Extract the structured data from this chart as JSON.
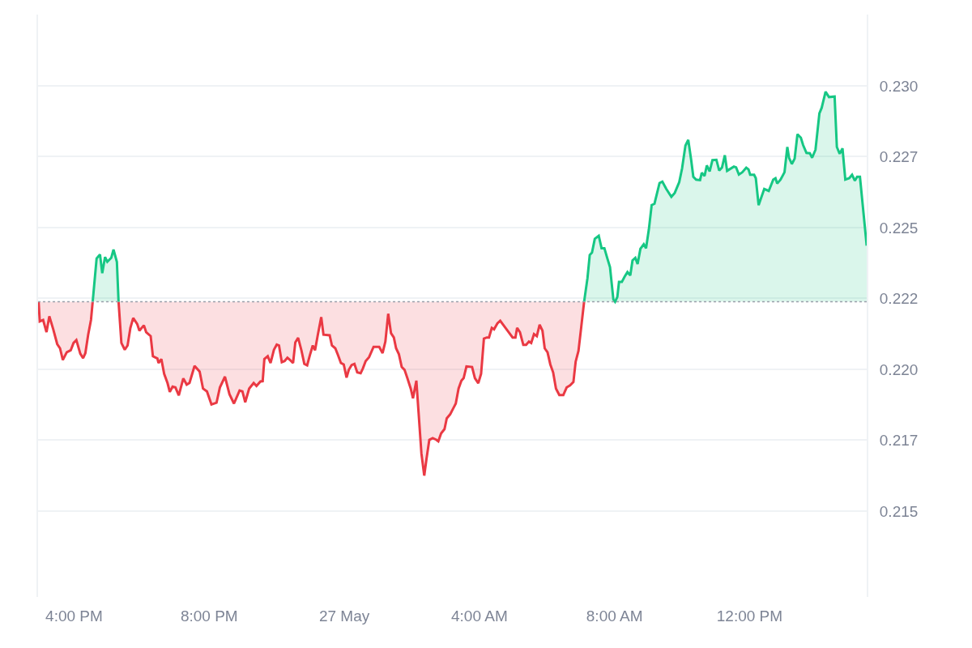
{
  "chart_data": {
    "type": "area",
    "xlim": [
      "--05-26T14:56",
      "--05-27T15:28"
    ],
    "ylim": [
      0.21197,
      0.23251
    ],
    "xticks": [
      {
        "value": "--05-26T16:00",
        "label": "4:00 PM"
      },
      {
        "value": "--05-26T20:00",
        "label": "8:00 PM"
      },
      {
        "value": "--05-27T00:00",
        "label": "27 May"
      },
      {
        "value": "--05-27T04:00",
        "label": "4:00 AM"
      },
      {
        "value": "--05-27T08:00",
        "label": "8:00 AM"
      },
      {
        "value": "--05-27T12:00",
        "label": "12:00 PM"
      }
    ],
    "yticks": [
      {
        "value": 0.215,
        "label": "0.215"
      },
      {
        "value": 0.2175,
        "label": "0.217"
      },
      {
        "value": 0.22,
        "label": "0.220"
      },
      {
        "value": 0.2225,
        "label": "0.222"
      },
      {
        "value": 0.225,
        "label": "0.225"
      },
      {
        "value": 0.2275,
        "label": "0.227"
      },
      {
        "value": 0.23,
        "label": "0.230"
      }
    ],
    "grid": "y",
    "marker": "none",
    "line_style": "solid",
    "ref_lines": [
      {
        "axis": "y",
        "value": 0.22238,
        "label": null,
        "color": "#9aa0ab",
        "line_style": "dotted"
      }
    ],
    "series": [
      {
        "color": "#ea3943",
        "x": [
          "--05-26T14:57",
          "--05-26T14:59",
          "--05-26T15:05",
          "--05-26T15:11",
          "--05-26T15:16",
          "--05-26T15:23",
          "--05-26T15:30",
          "--05-26T15:35",
          "--05-26T15:40",
          "--05-26T15:47",
          "--05-26T15:54",
          "--05-26T15:59",
          "--05-26T16:04",
          "--05-26T16:11",
          "--05-26T16:16",
          "--05-26T16:20",
          "--05-26T16:25",
          "--05-26T16:30",
          "--05-26T16:33",
          "--05-26T16:54",
          "--05-26T17:19",
          "--05-26T17:24",
          "--05-26T17:30",
          "--05-26T17:35",
          "--05-26T17:40",
          "--05-26T17:45",
          "--05-26T17:52",
          "--05-26T17:56",
          "--05-26T18:04",
          "--05-26T18:08",
          "--05-26T18:16",
          "--05-26T18:20",
          "--05-26T18:28",
          "--05-26T18:30",
          "--05-26T18:35",
          "--05-26T18:40",
          "--05-26T18:46",
          "--05-26T18:50",
          "--05-26T18:55",
          "--05-26T19:00",
          "--05-26T19:06",
          "--05-26T19:14",
          "--05-26T19:20",
          "--05-26T19:25",
          "--05-26T19:34",
          "--05-26T19:43",
          "--05-26T19:49",
          "--05-26T19:56",
          "--05-26T20:04",
          "--05-26T20:13",
          "--05-26T20:19",
          "--05-26T20:28",
          "--05-26T20:36",
          "--05-26T20:44",
          "--05-26T20:54",
          "--05-26T20:59",
          "--05-26T21:04",
          "--05-26T21:11",
          "--05-26T21:19",
          "--05-26T21:24",
          "--05-26T21:31",
          "--05-26T21:35",
          "--05-26T21:38",
          "--05-26T21:44",
          "--05-26T21:49",
          "--05-26T21:55",
          "--05-26T22:00",
          "--05-26T22:04",
          "--05-26T22:09",
          "--05-26T22:14",
          "--05-26T22:19",
          "--05-26T22:23",
          "--05-26T22:29",
          "--05-26T22:33",
          "--05-26T22:38",
          "--05-26T22:44",
          "--05-26T22:49",
          "--05-26T22:54",
          "--05-26T22:59",
          "--05-26T23:04",
          "--05-26T23:08",
          "--05-26T23:13",
          "--05-26T23:19",
          "--05-26T23:23",
          "--05-26T23:34",
          "--05-26T23:38",
          "--05-26T23:44",
          "--05-26T23:49",
          "--05-26T23:54",
          "--05-26T23:59",
          "--05-27T00:04",
          "--05-27T00:08",
          "--05-27T00:13",
          "--05-27T00:18",
          "--05-27T00:23",
          "--05-27T00:29",
          "--05-27T00:33",
          "--05-27T00:38",
          "--05-27T00:44",
          "--05-27T00:52",
          "--05-27T01:02",
          "--05-27T01:08",
          "--05-27T01:13",
          "--05-27T01:18",
          "--05-27T01:23",
          "--05-27T01:28",
          "--05-27T01:32",
          "--05-27T01:37",
          "--05-27T01:42",
          "--05-27T01:47",
          "--05-27T01:52",
          "--05-27T01:58",
          "--05-27T02:02",
          "--05-27T02:08",
          "--05-27T02:12",
          "--05-27T02:17",
          "--05-27T02:22",
          "--05-27T02:26",
          "--05-27T02:31",
          "--05-27T02:37",
          "--05-27T02:43",
          "--05-27T02:47",
          "--05-27T02:52",
          "--05-27T02:58",
          "--05-27T03:02",
          "--05-27T03:08",
          "--05-27T03:13",
          "--05-27T03:18",
          "--05-27T03:23",
          "--05-27T03:28",
          "--05-27T03:32",
          "--05-27T03:37",
          "--05-27T03:47",
          "--05-27T03:52",
          "--05-27T03:58",
          "--05-27T04:03",
          "--05-27T04:08",
          "--05-27T04:13",
          "--05-27T04:17",
          "--05-27T04:22",
          "--05-27T04:26",
          "--05-27T04:32",
          "--05-27T04:37",
          "--05-27T04:44",
          "--05-27T04:52",
          "--05-27T04:59",
          "--05-27T05:04",
          "--05-27T05:07",
          "--05-27T05:12",
          "--05-27T05:18",
          "--05-27T05:23",
          "--05-27T05:28",
          "--05-27T05:32",
          "--05-27T05:37",
          "--05-27T05:42",
          "--05-27T05:47",
          "--05-27T05:52",
          "--05-27T05:56",
          "--05-27T06:01",
          "--05-27T06:06",
          "--05-27T06:11",
          "--05-27T06:16",
          "--05-27T06:22",
          "--05-27T06:29",
          "--05-27T06:35",
          "--05-27T06:41",
          "--05-27T06:47",
          "--05-27T06:51",
          "--05-27T06:56",
          "--05-27T07:01",
          "--05-27T07:06"
        ],
        "values": [
          0.22238,
          0.22169,
          0.22174,
          0.22131,
          0.22187,
          0.22141,
          0.22089,
          0.22074,
          0.22033,
          0.2206,
          0.22067,
          0.22093,
          0.22103,
          0.22055,
          0.22039,
          0.22057,
          0.22122,
          0.22174,
          0.22238,
          null,
          0.22238,
          0.22093,
          0.22069,
          0.22084,
          0.22146,
          0.22181,
          0.2216,
          0.22136,
          0.22155,
          0.22131,
          0.22117,
          0.22046,
          0.22038,
          0.22022,
          0.22036,
          0.21984,
          0.21951,
          0.2192,
          0.21939,
          0.21936,
          0.21908,
          0.21968,
          0.21946,
          0.21952,
          0.22012,
          0.21992,
          0.21932,
          0.21922,
          0.21876,
          0.21882,
          0.21936,
          0.21974,
          0.21912,
          0.21879,
          0.21925,
          0.21922,
          0.21884,
          0.21932,
          0.21952,
          0.21941,
          0.21957,
          0.21958,
          0.22036,
          0.22046,
          0.22022,
          0.22069,
          0.22087,
          0.22084,
          0.22025,
          0.22029,
          0.22041,
          0.22034,
          0.22022,
          0.22095,
          0.22111,
          0.22065,
          0.22019,
          0.22014,
          0.22051,
          0.22084,
          0.22067,
          0.22122,
          0.22184,
          0.22122,
          0.2212,
          0.22084,
          0.22074,
          0.22049,
          0.22022,
          0.22017,
          0.21971,
          0.21998,
          0.22015,
          0.22019,
          0.21989,
          0.21986,
          0.22003,
          0.22029,
          0.22043,
          0.22079,
          0.22079,
          0.22057,
          0.22098,
          0.22196,
          0.22127,
          0.22112,
          0.22074,
          0.22053,
          0.22008,
          0.21998,
          0.21969,
          0.21932,
          0.21898,
          0.2196,
          0.21846,
          0.21703,
          0.21625,
          0.21684,
          0.21751,
          0.21757,
          0.21752,
          0.21746,
          0.21774,
          0.21789,
          0.21827,
          0.21841,
          0.2186,
          0.21879,
          0.21932,
          0.2196,
          0.21969,
          0.2201,
          0.22008,
          0.21969,
          0.21951,
          0.21984,
          0.22108,
          0.22112,
          0.22112,
          0.22146,
          0.22141,
          0.22162,
          0.22171,
          0.22152,
          0.22131,
          0.22112,
          0.22112,
          0.22146,
          0.22131,
          0.22086,
          0.22086,
          0.22098,
          0.22093,
          0.22124,
          0.22117,
          0.22157,
          0.22136,
          0.22074,
          0.2206,
          0.22017,
          0.21989,
          0.21932,
          0.21909,
          0.21909,
          0.21936,
          0.21943,
          0.21955,
          0.22027,
          0.22065,
          0.22151,
          0.22238
        ]
      },
      {
        "color": "#16c784",
        "x": [
          "--05-26T16:33",
          "--05-26T16:40",
          "--05-26T16:46",
          "--05-26T16:50",
          "--05-26T16:55",
          "--05-26T16:59",
          "--05-26T17:06",
          "--05-26T17:10",
          "--05-26T17:16",
          "--05-26T17:19",
          "--05-27T00:00",
          "--05-27T07:06",
          "--05-27T07:12",
          "--05-27T07:16",
          "--05-27T07:20",
          "--05-27T07:25",
          "--05-27T07:32",
          "--05-27T07:37",
          "--05-27T07:42",
          "--05-27T07:47",
          "--05-27T07:52",
          "--05-27T07:55",
          "--05-27T07:58",
          "--05-27T08:01",
          "--05-27T08:05",
          "--05-27T08:08",
          "--05-27T08:13",
          "--05-27T08:18",
          "--05-27T08:23",
          "--05-27T08:28",
          "--05-27T08:32",
          "--05-27T08:37",
          "--05-27T08:41",
          "--05-27T08:46",
          "--05-27T08:52",
          "--05-27T08:56",
          "--05-27T09:01",
          "--05-27T09:06",
          "--05-27T09:11",
          "--05-27T09:20",
          "--05-27T09:25",
          "--05-27T09:32",
          "--05-27T09:41",
          "--05-27T09:47",
          "--05-27T09:55",
          "--05-27T10:00",
          "--05-27T10:06",
          "--05-27T10:11",
          "--05-27T10:16",
          "--05-27T10:20",
          "--05-27T10:25",
          "--05-27T10:32",
          "--05-27T10:35",
          "--05-27T10:40",
          "--05-27T10:44",
          "--05-27T10:49",
          "--05-27T10:54",
          "--05-27T11:01",
          "--05-27T11:06",
          "--05-27T11:11",
          "--05-27T11:16",
          "--05-27T11:20",
          "--05-27T11:32",
          "--05-27T11:36",
          "--05-27T11:41",
          "--05-27T11:47",
          "--05-27T11:54",
          "--05-27T11:58",
          "--05-27T12:01",
          "--05-27T12:08",
          "--05-27T12:11",
          "--05-27T12:16",
          "--05-27T12:26",
          "--05-27T12:34",
          "--05-27T12:42",
          "--05-27T12:46",
          "--05-27T12:49",
          "--05-27T12:55",
          "--05-27T13:02",
          "--05-27T13:07",
          "--05-27T13:10",
          "--05-27T13:15",
          "--05-27T13:20",
          "--05-27T13:25",
          "--05-27T13:31",
          "--05-27T13:35",
          "--05-27T13:41",
          "--05-27T13:47",
          "--05-27T13:51",
          "--05-27T13:57",
          "--05-27T14:04",
          "--05-27T14:08",
          "--05-27T14:15",
          "--05-27T14:21",
          "--05-27T14:31",
          "--05-27T14:35",
          "--05-27T14:40",
          "--05-27T14:45",
          "--05-27T14:50",
          "--05-27T14:57",
          "--05-27T15:02",
          "--05-27T15:07",
          "--05-27T15:11",
          "--05-27T15:16",
          "--05-27T15:28"
        ],
        "values": [
          0.22238,
          0.22391,
          0.22405,
          0.22339,
          0.22396,
          0.22379,
          0.22393,
          0.22422,
          0.22379,
          0.22238,
          null,
          0.22238,
          0.22322,
          0.22403,
          0.22412,
          0.2246,
          0.22471,
          0.22427,
          0.22427,
          0.22393,
          0.2236,
          0.22303,
          0.22246,
          0.22238,
          0.22255,
          0.22308,
          0.22308,
          0.22327,
          0.22343,
          0.22331,
          0.22384,
          0.22393,
          0.22371,
          0.22425,
          0.22441,
          0.22427,
          0.22493,
          0.22579,
          0.22584,
          0.22657,
          0.22662,
          0.22636,
          0.22608,
          0.22622,
          0.2266,
          0.22708,
          0.22789,
          0.22809,
          0.22741,
          0.22679,
          0.22669,
          0.22667,
          0.22693,
          0.22682,
          0.22719,
          0.22698,
          0.22738,
          0.22739,
          0.22701,
          0.22712,
          0.22755,
          0.227,
          0.22715,
          0.22712,
          0.22687,
          0.22695,
          0.22711,
          0.22705,
          0.22686,
          0.22686,
          0.22674,
          0.22579,
          0.22636,
          0.22629,
          0.22669,
          0.22674,
          0.22655,
          0.22669,
          0.22695,
          0.22784,
          0.22746,
          0.22724,
          0.22743,
          0.22829,
          0.22817,
          0.22791,
          0.22763,
          0.22762,
          0.22746,
          0.22774,
          0.22903,
          0.22922,
          0.22979,
          0.2296,
          0.22962,
          0.22784,
          0.2276,
          0.22779,
          0.22669,
          0.22674,
          0.22686,
          0.22665,
          0.22679,
          0.22679,
          0.22436
        ]
      }
    ]
  }
}
